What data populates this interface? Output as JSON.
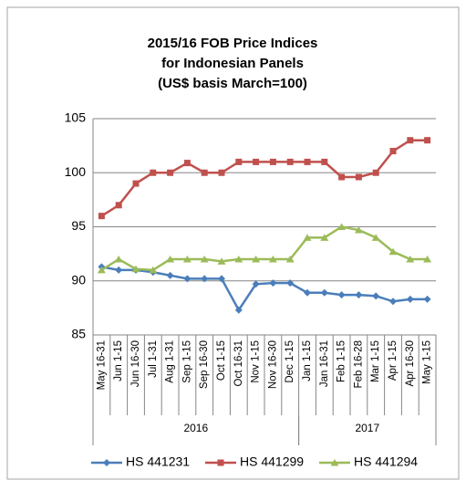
{
  "chart_data": {
    "type": "line",
    "title": [
      "2015/16 FOB Price Indices",
      "for Indonesian Panels",
      "(US$ basis March=100)"
    ],
    "categories": [
      "May 16-31",
      "Jun 1-15",
      "Jun 16-30",
      "Jul 1-31",
      "Aug 1-31",
      "Sep 1-15",
      "Sep 16-30",
      "Oct 1-15",
      "Oct 16-31",
      "Nov 1-15",
      "Nov 16-30",
      "Dec 1-15",
      "Jan 1-15",
      "Jan 16-31",
      "Feb 1-15",
      "Feb 16-28",
      "Mar 1-15",
      "Apr 1-15",
      "Apr 16-30",
      "May 1-15"
    ],
    "category_groups": [
      {
        "label": "2016",
        "start": 0,
        "end": 11
      },
      {
        "label": "2017",
        "start": 12,
        "end": 19
      }
    ],
    "series": [
      {
        "name": "HS 441231",
        "color": "#4a7ebb",
        "marker": "diamond",
        "values": [
          91.3,
          91.0,
          91.0,
          90.8,
          90.5,
          90.2,
          90.2,
          90.2,
          87.3,
          89.7,
          89.8,
          89.8,
          88.9,
          88.9,
          88.7,
          88.7,
          88.6,
          88.1,
          88.3,
          88.3
        ]
      },
      {
        "name": "HS 441299",
        "color": "#c0504d",
        "marker": "square",
        "values": [
          96,
          97,
          99,
          100,
          100,
          100.9,
          100,
          100,
          101,
          101,
          101,
          101,
          101,
          101,
          99.6,
          99.6,
          100,
          102,
          103,
          103
        ]
      },
      {
        "name": "HS 441294",
        "color": "#9bbb59",
        "marker": "triangle",
        "values": [
          91,
          92,
          91.1,
          91,
          92,
          92,
          92,
          91.8,
          92,
          92,
          92,
          92,
          94,
          94,
          95,
          94.7,
          94,
          92.7,
          92,
          92
        ]
      }
    ],
    "ylim": [
      85,
      105
    ],
    "yticks": [
      85,
      90,
      95,
      100,
      105
    ],
    "grid": true,
    "legend": "bottom"
  }
}
